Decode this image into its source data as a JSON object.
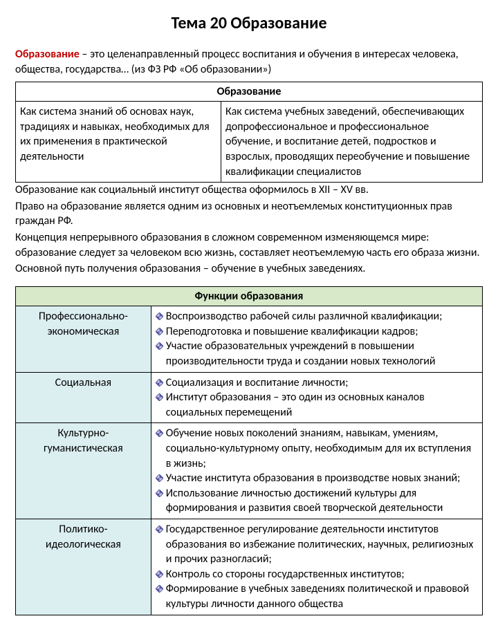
{
  "title": "Тема 20 Образование",
  "definition": {
    "term": "Образование",
    "text": " – это целенаправленный процесс воспитания и обучения в интересах человека, общества, государства… (из ФЗ РФ «Об образовании»)"
  },
  "table1": {
    "header": "Образование",
    "left": "Как система знаний об основах наук, традициях и навыках, необходимых для их применения в практической деятельности",
    "right": "Как система учебных заведений, обеспечивающих допрофессиональное и профессиональное обучение, и воспитание детей, подростков и взрослых, проводящих переобучение и повышение квалификации специалистов"
  },
  "middle": [
    "Образование как социальный институт общества оформилось в XII – XV вв.",
    "Право на образование является одним из основных и неотъемлемых конституционных прав граждан РФ.",
    "Концепция непрерывного образования в сложном современном изменяющемся мире: образование следует за человеком всю жизнь, составляет неотъемлемую часть его образа жизни.",
    "Основной путь получения образования – обучение в учебных заведениях."
  ],
  "table2": {
    "header": "Функции образования",
    "rows": [
      {
        "label_lines": [
          "Профессионально-",
          "экономическая"
        ],
        "items": [
          "Воспроизводство рабочей силы различной квалификации;",
          "Переподготовка и повышение квалификации кадров;",
          "Участие образовательных учреждений в повышении производительности труда и создании новых технологий"
        ]
      },
      {
        "label_lines": [
          "Социальная"
        ],
        "items": [
          "Социализация и воспитание личности;",
          "Институт образования – это один из основных каналов социальных перемещений"
        ]
      },
      {
        "label_lines": [
          "Культурно-",
          "гуманистическая"
        ],
        "items": [
          "Обучение новых поколений знаниям, навыкам, умениям, социально-культурному опыту, необходимым для их вступления в жизнь;",
          "Участие института образования в производстве новых знаний;",
          "Использование личностью достижений культуры для формирования и развития своей творческой деятельности"
        ]
      },
      {
        "label_lines": [
          "Политико-",
          "идеологическая"
        ],
        "items": [
          "Государственное регулирование деятельности институтов образования во избежание политических, научных, религиозных и прочих разногласий;",
          "Контроль со стороны государственных институтов;",
          "Формирование в учебных заведениях политической и правовой культуры личности данного общества"
        ]
      }
    ]
  },
  "style": {
    "header_bg": "#d7e9c9",
    "label_bg": "#dbeef0",
    "diamond_stroke": "#3b3b8f",
    "diamond_fill_dark": "#5b5ba8",
    "diamond_fill_light": "#c9c9e6",
    "term_color": "#c00000",
    "border_color": "#000000",
    "font_size_body": 16,
    "font_size_title": 24
  }
}
